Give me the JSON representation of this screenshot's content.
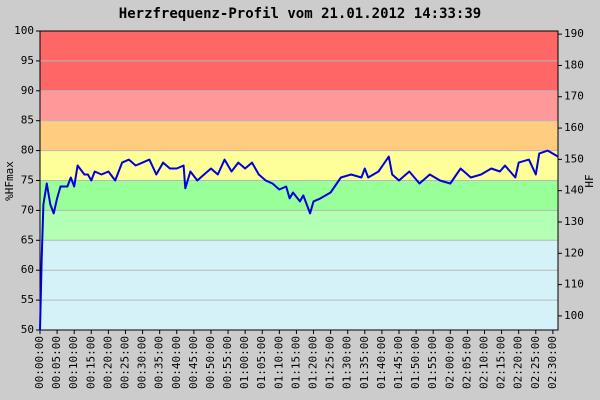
{
  "chart_data": {
    "type": "line",
    "title": "Herzfrequenz-Profil vom 21.01.2012 14:33:39",
    "y_label": "%HFmax",
    "y2_label": "HF",
    "grid": true,
    "xlim": [
      0,
      151.5
    ],
    "ylim": [
      50,
      100
    ],
    "yticks": [
      50,
      55,
      60,
      65,
      70,
      75,
      80,
      85,
      90,
      95,
      100
    ],
    "y2lim": [
      95.5,
      191
    ],
    "y2ticks": [
      100,
      110,
      120,
      130,
      140,
      150,
      160,
      170,
      180,
      190
    ],
    "xticks": [
      {
        "value": 0,
        "label": "00:00:00"
      },
      {
        "value": 5,
        "label": "00:05:00"
      },
      {
        "value": 10,
        "label": "00:10:00"
      },
      {
        "value": 15,
        "label": "00:15:00"
      },
      {
        "value": 20,
        "label": "00:20:00"
      },
      {
        "value": 25,
        "label": "00:25:00"
      },
      {
        "value": 30,
        "label": "00:30:00"
      },
      {
        "value": 35,
        "label": "00:35:00"
      },
      {
        "value": 40,
        "label": "00:40:00"
      },
      {
        "value": 45,
        "label": "00:45:00"
      },
      {
        "value": 50,
        "label": "00:50:00"
      },
      {
        "value": 55,
        "label": "00:55:00"
      },
      {
        "value": 60,
        "label": "01:00:00"
      },
      {
        "value": 65,
        "label": "01:05:00"
      },
      {
        "value": 70,
        "label": "01:10:00"
      },
      {
        "value": 75,
        "label": "01:15:00"
      },
      {
        "value": 80,
        "label": "01:20:00"
      },
      {
        "value": 85,
        "label": "01:25:00"
      },
      {
        "value": 90,
        "label": "01:30:00"
      },
      {
        "value": 95,
        "label": "01:35:00"
      },
      {
        "value": 100,
        "label": "01:40:00"
      },
      {
        "value": 105,
        "label": "01:45:00"
      },
      {
        "value": 110,
        "label": "01:50:00"
      },
      {
        "value": 115,
        "label": "01:55:00"
      },
      {
        "value": 120,
        "label": "02:00:00"
      },
      {
        "value": 125,
        "label": "02:05:00"
      },
      {
        "value": 130,
        "label": "02:10:00"
      },
      {
        "value": 135,
        "label": "02:15:00"
      },
      {
        "value": 140,
        "label": "02:20:00"
      },
      {
        "value": 145,
        "label": "02:25:00"
      },
      {
        "value": 150,
        "label": "02:30:00"
      }
    ],
    "bands": [
      {
        "from": 50,
        "to": 65,
        "color": "#d4f2f8"
      },
      {
        "from": 65,
        "to": 70,
        "color": "#b3ffb3"
      },
      {
        "from": 70,
        "to": 75,
        "color": "#99ff99"
      },
      {
        "from": 75,
        "to": 80,
        "color": "#ffff99"
      },
      {
        "from": 80,
        "to": 85,
        "color": "#ffcc80"
      },
      {
        "from": 85,
        "to": 90,
        "color": "#ff9999"
      },
      {
        "from": 90,
        "to": 100,
        "color": "#ff6666"
      }
    ],
    "x": [
      0,
      0.5,
      1,
      2,
      3,
      4,
      5,
      6,
      8,
      9,
      10,
      11,
      13,
      14,
      15,
      16,
      18,
      20,
      22,
      24,
      26,
      28,
      30,
      32,
      34,
      36,
      38,
      40,
      42,
      42.5,
      44,
      46,
      48,
      50,
      52,
      54,
      56,
      58,
      60,
      62,
      64,
      66,
      68,
      70,
      72,
      73,
      74,
      76,
      77,
      79,
      80,
      82,
      85,
      88,
      91,
      94,
      95,
      96,
      99,
      102,
      103,
      105,
      108,
      111,
      114,
      117,
      120,
      123,
      126,
      129,
      132,
      134.5,
      136,
      139,
      140,
      143,
      145,
      146,
      148.5,
      150,
      151.5
    ],
    "series": [
      {
        "name": "%HFmax",
        "color": "#0000dd",
        "values": [
          50,
          62,
          71,
          74.5,
          71,
          69.5,
          72,
          74,
          74,
          75.5,
          74,
          77.5,
          76,
          76,
          75,
          76.5,
          76,
          76.5,
          75,
          78,
          78.5,
          77.5,
          78,
          78.5,
          76,
          78,
          77,
          77,
          77.5,
          73.7,
          76.5,
          75,
          76,
          77,
          76,
          78.5,
          76.5,
          78,
          77,
          78,
          76,
          75,
          74.5,
          73.5,
          74,
          72,
          73,
          71.5,
          72.5,
          69.5,
          71.5,
          72,
          73,
          75.5,
          76,
          75.5,
          77,
          75.5,
          76.5,
          79,
          76,
          75,
          76.5,
          74.5,
          76,
          75,
          74.5,
          77,
          75.5,
          76,
          77,
          76.5,
          77.5,
          75.5,
          78,
          78.5,
          76,
          79.5,
          80,
          79.5,
          79
        ]
      }
    ]
  }
}
